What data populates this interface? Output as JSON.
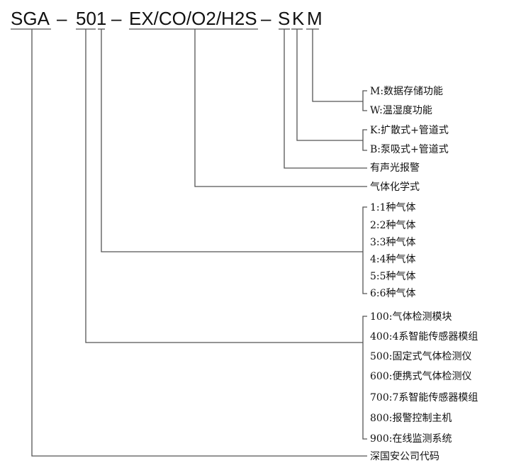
{
  "model_code": {
    "parts": [
      "SGA",
      "–",
      "501",
      "–",
      "EX/CO/O2/H2S",
      "–",
      "S",
      "K",
      "M"
    ]
  },
  "legend": {
    "M_options": [
      "M:数据存储功能",
      "W:温湿度功能"
    ],
    "K_options": [
      "K:扩散式+管道式",
      "B:泵吸式+管道式"
    ],
    "S_label": "有声光报警",
    "gas_label": "气体化学式",
    "count_options": [
      "1:1种气体",
      "2:2种气体",
      "3:3种气体",
      "4:4种气体",
      "5:5种气体",
      "6:6种气体"
    ],
    "series_options": [
      "100:气体检测模块",
      "400:4系智能传感器模组",
      "500:固定式气体检测仪",
      "600:便携式气体检测仪",
      "700:7系智能传感器模组",
      "800:报警控制主机",
      "900:在线监测系统"
    ],
    "company_label": "深国安公司代码"
  },
  "colors": {
    "line": "#555555",
    "text": "#111111"
  }
}
